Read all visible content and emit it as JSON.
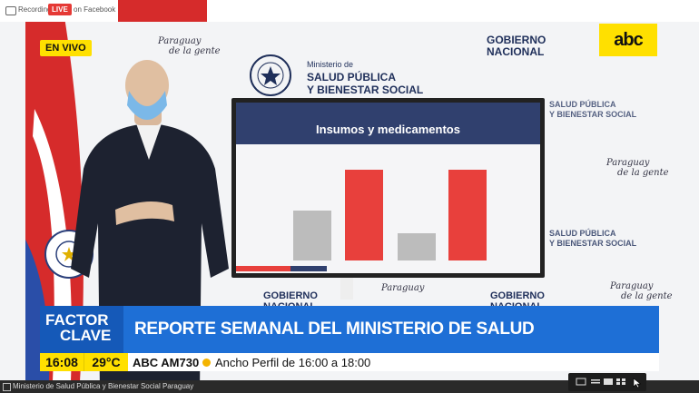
{
  "recording": {
    "label": "Recording",
    "live_badge": "LIVE",
    "platform": "on Facebook"
  },
  "broadcast": {
    "en_vivo": "EN VIVO",
    "channel_logo": "abc"
  },
  "wall": {
    "gobierno": [
      "GOBIERNO",
      "NACIONAL"
    ],
    "ministerio_prefix": "Ministerio de",
    "ministerio_1": "SALUD PÚBLICA",
    "ministerio_2": "Y BIENESTAR SOCIAL",
    "script": [
      "Paraguay",
      "de la gente"
    ]
  },
  "slide": {
    "title": "Insumos y medicamentos"
  },
  "chart_data": {
    "type": "bar",
    "title": "Insumos y medicamentos",
    "series": [
      {
        "values": [
          0.55,
          1.0,
          0.3,
          1.0
        ],
        "colors": [
          "#bcbcbc",
          "#e8403c",
          "#bcbcbc",
          "#e8403c"
        ]
      }
    ],
    "note": "bar labels and axis not legible"
  },
  "ticker": {
    "brand_1": "FACTOR",
    "brand_2": "CLAVE",
    "headline": "REPORTE SEMANAL DEL MINISTERIO DE SALUD"
  },
  "info": {
    "time": "16:08",
    "temp": "29°C",
    "station": "ABC AM730",
    "program": "Ancho Perfil de 16:00 a 18:00"
  },
  "window": {
    "title": "Ministerio de Salud Pública y Bienestar Social Paraguay"
  },
  "colors": {
    "accent": "#1e6fd6",
    "yellow": "#ffe000",
    "red": "#e8403c",
    "navy": "#30406e"
  }
}
